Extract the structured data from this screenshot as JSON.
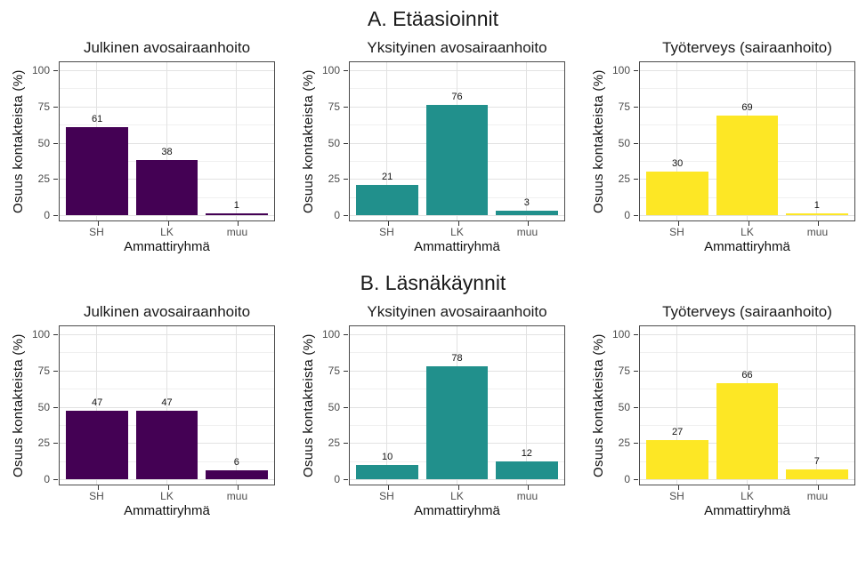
{
  "chart_data": {
    "type": "bar",
    "categories": [
      "SH",
      "LK",
      "muu"
    ],
    "xlabel": "Ammattiryhmä",
    "ylabel": "Osuus kontakteista (%)",
    "ylim": [
      0,
      100
    ],
    "yticks": [
      0,
      25,
      50,
      75,
      100
    ],
    "yticks_minor": [
      12.5,
      37.5,
      62.5,
      87.5
    ],
    "grid": true,
    "legend": false,
    "bar_value_labels": true,
    "panel_border_color": "#4a4a4a",
    "major_grid_color": "#e2e2e2",
    "minor_grid_color": "#f0f0f0",
    "sections": [
      {
        "title": "A. Etäasioinnit",
        "panels": [
          {
            "title": "Julkinen avosairaanhoito",
            "bar_color": "#440154",
            "values": [
              61,
              38,
              1
            ]
          },
          {
            "title": "Yksityinen avosairaanhoito",
            "bar_color": "#21908C",
            "values": [
              21,
              76,
              3
            ]
          },
          {
            "title": "Työterveys (sairaanhoito)",
            "bar_color": "#FDE725",
            "values": [
              30,
              69,
              1
            ]
          }
        ]
      },
      {
        "title": "B. Läsnäkäynnit",
        "panels": [
          {
            "title": "Julkinen avosairaanhoito",
            "bar_color": "#440154",
            "values": [
              47,
              47,
              6
            ]
          },
          {
            "title": "Yksityinen avosairaanhoito",
            "bar_color": "#21908C",
            "values": [
              10,
              78,
              12
            ]
          },
          {
            "title": "Työterveys (sairaanhoito)",
            "bar_color": "#FDE725",
            "values": [
              27,
              66,
              7
            ]
          }
        ]
      }
    ]
  }
}
